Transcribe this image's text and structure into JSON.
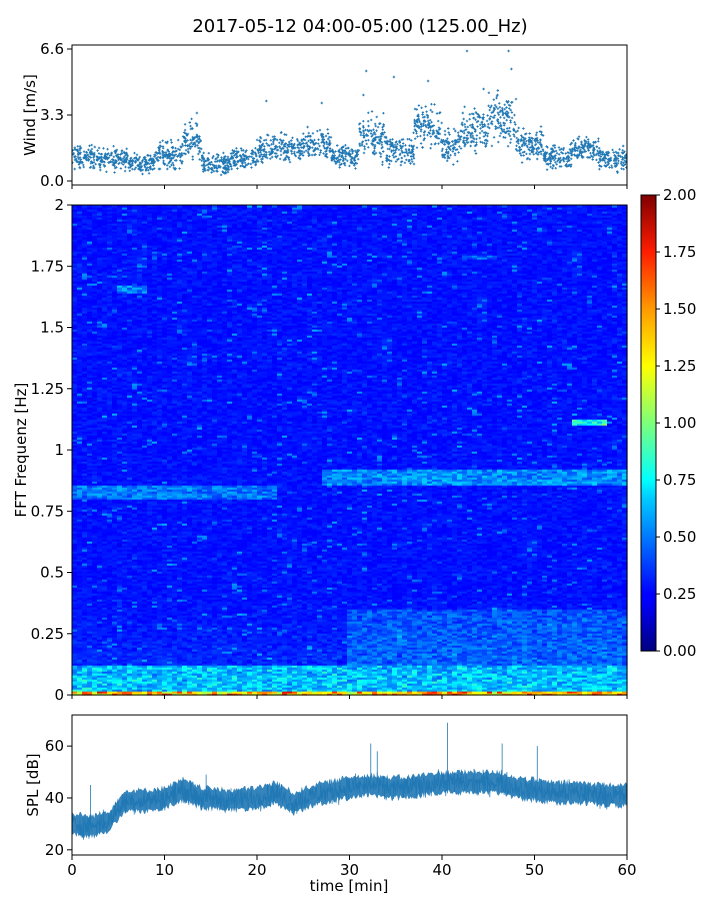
{
  "title": "2017-05-12 04:00-05:00 (125.00_Hz)",
  "chart_data": [
    {
      "type": "scatter",
      "ylabel": "Wind [m/s]",
      "xlim": [
        0,
        60
      ],
      "ylim": [
        -0.2,
        6.8
      ],
      "yticks": [
        "0.0",
        "3.3",
        "6.6"
      ],
      "marker_color": "#1f77b4",
      "segments": [
        {
          "x0": 0,
          "x1": 3,
          "mean": 1.2,
          "spread": 0.5
        },
        {
          "x0": 3,
          "x1": 6,
          "mean": 1.1,
          "spread": 0.5
        },
        {
          "x0": 6,
          "x1": 9,
          "mean": 0.9,
          "spread": 0.4
        },
        {
          "x0": 9,
          "x1": 12,
          "mean": 1.3,
          "spread": 0.6
        },
        {
          "x0": 12,
          "x1": 14,
          "mean": 2.0,
          "spread": 0.8
        },
        {
          "x0": 14,
          "x1": 17,
          "mean": 0.8,
          "spread": 0.5
        },
        {
          "x0": 17,
          "x1": 20,
          "mean": 1.1,
          "spread": 0.5
        },
        {
          "x0": 20,
          "x1": 25,
          "mean": 1.6,
          "spread": 0.6
        },
        {
          "x0": 25,
          "x1": 28,
          "mean": 1.9,
          "spread": 0.7
        },
        {
          "x0": 28,
          "x1": 31,
          "mean": 1.2,
          "spread": 0.5
        },
        {
          "x0": 31,
          "x1": 34,
          "mean": 2.2,
          "spread": 1.0
        },
        {
          "x0": 34,
          "x1": 37,
          "mean": 1.5,
          "spread": 0.7
        },
        {
          "x0": 37,
          "x1": 40,
          "mean": 2.7,
          "spread": 0.9
        },
        {
          "x0": 40,
          "x1": 42,
          "mean": 1.8,
          "spread": 0.7
        },
        {
          "x0": 42,
          "x1": 45,
          "mean": 2.6,
          "spread": 1.0
        },
        {
          "x0": 45,
          "x1": 48,
          "mean": 3.0,
          "spread": 1.1
        },
        {
          "x0": 48,
          "x1": 51,
          "mean": 1.8,
          "spread": 0.7
        },
        {
          "x0": 51,
          "x1": 54,
          "mean": 1.2,
          "spread": 0.5
        },
        {
          "x0": 54,
          "x1": 57,
          "mean": 1.6,
          "spread": 0.6
        },
        {
          "x0": 57,
          "x1": 60,
          "mean": 1.1,
          "spread": 0.5
        }
      ],
      "outliers": [
        [
          13.5,
          3.4
        ],
        [
          21,
          4.0
        ],
        [
          27,
          3.9
        ],
        [
          31.5,
          4.3
        ],
        [
          31.8,
          5.5
        ],
        [
          34.8,
          5.2
        ],
        [
          38.5,
          5.0
        ],
        [
          42.7,
          6.5
        ],
        [
          46,
          4.3
        ],
        [
          47.2,
          6.5
        ],
        [
          47.5,
          5.6
        ],
        [
          44.5,
          4.6
        ]
      ]
    },
    {
      "type": "heatmap",
      "ylabel": "FFT Frequenz [Hz]",
      "xlim": [
        0,
        60
      ],
      "ylim": [
        0,
        2
      ],
      "yticks": [
        "0",
        "0.25",
        "0.5",
        "0.75",
        "1",
        "1.25",
        "1.5",
        "1.75",
        "2"
      ],
      "colormap": "jet",
      "colorbar": {
        "range": [
          0,
          2
        ],
        "ticks": [
          "0.00",
          "0.25",
          "0.50",
          "0.75",
          "1.00",
          "1.25",
          "1.50",
          "1.75",
          "2.00"
        ]
      },
      "features": [
        {
          "f0": 0.0,
          "f1": 0.02,
          "x0": 0,
          "x1": 60,
          "level": 1.5
        },
        {
          "f0": 0.02,
          "f1": 0.12,
          "x0": 0,
          "x1": 60,
          "level": 0.65
        },
        {
          "f0": 0.12,
          "f1": 0.35,
          "x0": 30,
          "x1": 60,
          "level": 0.45
        },
        {
          "f0": 0.8,
          "f1": 0.86,
          "x0": 0,
          "x1": 22,
          "level": 0.55
        },
        {
          "f0": 0.86,
          "f1": 0.92,
          "x0": 27,
          "x1": 60,
          "level": 0.6
        },
        {
          "f0": 1.1,
          "f1": 1.13,
          "x0": 54,
          "x1": 58,
          "level": 0.9
        },
        {
          "f0": 1.64,
          "f1": 1.67,
          "x0": 5,
          "x1": 8,
          "level": 0.6
        },
        {
          "f0": 1.78,
          "f1": 1.8,
          "x0": 42,
          "x1": 46,
          "level": 0.5
        }
      ]
    },
    {
      "type": "line",
      "ylabel": "SPL [dB]",
      "xlabel": "time [min]",
      "xlim": [
        0,
        60
      ],
      "ylim": [
        18,
        72
      ],
      "xticks": [
        "0",
        "10",
        "20",
        "30",
        "40",
        "50",
        "60"
      ],
      "yticks": [
        "20",
        "40",
        "60"
      ],
      "line_color": "#1f77b4",
      "profile": [
        [
          0,
          30
        ],
        [
          2,
          29
        ],
        [
          4,
          31
        ],
        [
          5,
          36
        ],
        [
          6,
          39
        ],
        [
          8,
          39
        ],
        [
          10,
          40
        ],
        [
          12,
          43
        ],
        [
          14,
          40
        ],
        [
          17,
          39
        ],
        [
          20,
          40
        ],
        [
          22,
          42
        ],
        [
          24,
          38
        ],
        [
          26,
          41
        ],
        [
          30,
          44
        ],
        [
          32,
          45
        ],
        [
          34,
          44
        ],
        [
          36,
          44
        ],
        [
          40,
          46
        ],
        [
          43,
          46
        ],
        [
          46,
          46
        ],
        [
          48,
          44
        ],
        [
          52,
          42
        ],
        [
          55,
          42
        ],
        [
          58,
          41
        ],
        [
          60,
          41
        ]
      ],
      "band_halfwidth": 4,
      "spikes": [
        [
          2,
          45
        ],
        [
          14.5,
          49
        ],
        [
          32.3,
          61
        ],
        [
          33,
          58
        ],
        [
          40.6,
          69
        ],
        [
          46.5,
          61
        ],
        [
          50.3,
          60
        ]
      ]
    }
  ]
}
